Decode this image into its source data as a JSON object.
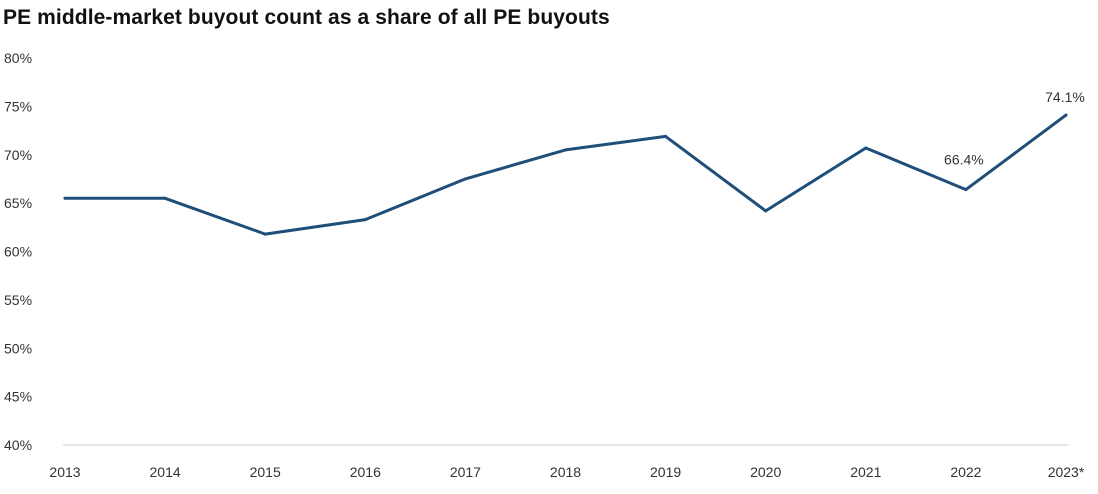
{
  "chart_data": {
    "type": "line",
    "title": "PE middle-market buyout count as a share of all PE buyouts",
    "xlabel": "",
    "ylabel": "",
    "categories": [
      "2013",
      "2014",
      "2015",
      "2016",
      "2017",
      "2018",
      "2019",
      "2020",
      "2021",
      "2022",
      "2023*"
    ],
    "series": [
      {
        "values": [
          65.5,
          65.5,
          61.8,
          63.3,
          67.5,
          70.5,
          71.9,
          64.2,
          70.7,
          66.4,
          74.1
        ],
        "color": "#1f4e79"
      }
    ],
    "ylim": [
      40,
      80
    ],
    "yticks": [
      40,
      45,
      50,
      55,
      60,
      65,
      70,
      75,
      80
    ],
    "ytick_labels": [
      "40%",
      "45%",
      "50%",
      "55%",
      "60%",
      "65%",
      "70%",
      "75%",
      "80%"
    ],
    "data_labels": [
      {
        "index": 9,
        "text": "66.4%"
      },
      {
        "index": 10,
        "text": "74.1%"
      }
    ],
    "grid": false,
    "axis_color": "#cccccc",
    "text_color": "#333333"
  }
}
